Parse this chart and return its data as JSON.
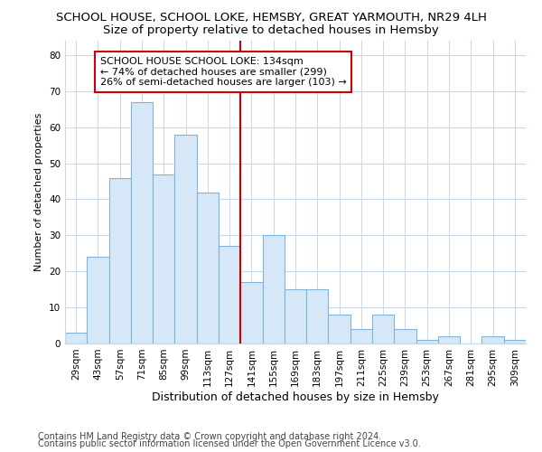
{
  "title": "SCHOOL HOUSE, SCHOOL LOKE, HEMSBY, GREAT YARMOUTH, NR29 4LH",
  "subtitle": "Size of property relative to detached houses in Hemsby",
  "xlabel": "Distribution of detached houses by size in Hemsby",
  "ylabel": "Number of detached properties",
  "categories": [
    "29sqm",
    "43sqm",
    "57sqm",
    "71sqm",
    "85sqm",
    "99sqm",
    "113sqm",
    "127sqm",
    "141sqm",
    "155sqm",
    "169sqm",
    "183sqm",
    "197sqm",
    "211sqm",
    "225sqm",
    "239sqm",
    "253sqm",
    "267sqm",
    "281sqm",
    "295sqm",
    "309sqm"
  ],
  "values": [
    3,
    24,
    46,
    67,
    47,
    58,
    42,
    27,
    17,
    30,
    15,
    15,
    8,
    4,
    8,
    4,
    1,
    2,
    0,
    2,
    1
  ],
  "bar_color": "#d6e8f7",
  "bar_edge_color": "#7fb3d9",
  "grid_color": "#c8d8e8",
  "background_color": "#ffffff",
  "marker_color": "#cc0000",
  "annotation_box_color": "#ffffff",
  "annotation_box_edge": "#cc0000",
  "marker_label": "SCHOOL HOUSE SCHOOL LOKE: 134sqm",
  "annotation_line1": "← 74% of detached houses are smaller (299)",
  "annotation_line2": "26% of semi-detached houses are larger (103) →",
  "ylim": [
    0,
    84
  ],
  "yticks": [
    0,
    10,
    20,
    30,
    40,
    50,
    60,
    70,
    80
  ],
  "footer1": "Contains HM Land Registry data © Crown copyright and database right 2024.",
  "footer2": "Contains public sector information licensed under the Open Government Licence v3.0.",
  "title_fontsize": 9.5,
  "subtitle_fontsize": 9.5,
  "xlabel_fontsize": 9,
  "ylabel_fontsize": 8,
  "tick_fontsize": 7.5,
  "annotation_fontsize": 8,
  "footer_fontsize": 7
}
